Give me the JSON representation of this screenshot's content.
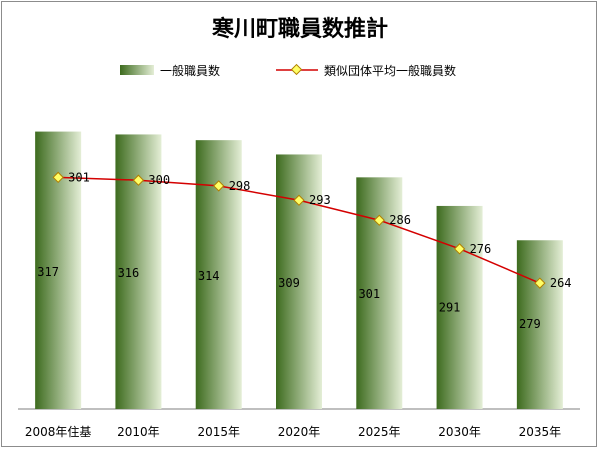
{
  "chart_data": {
    "type": "bar",
    "title": "寒川町職員数推計",
    "categories": [
      "2008年住基",
      "2010年",
      "2015年",
      "2020年",
      "2025年",
      "2030年",
      "2035年"
    ],
    "series": [
      {
        "name": "一般職員数",
        "type": "bar",
        "values": [
          317,
          316,
          314,
          309,
          301,
          291,
          279
        ]
      },
      {
        "name": "類似団体平均一般職員数",
        "type": "line",
        "values": [
          301,
          300,
          298,
          293,
          286,
          276,
          264
        ]
      }
    ],
    "ylim": [
      220,
      320
    ],
    "legend": "top",
    "grid": false,
    "colors": {
      "bar_dark": "#3d6b1e",
      "bar_light": "#e4eed6",
      "line": "#d40000",
      "marker_fill": "#ffff66",
      "marker_stroke": "#b08000"
    }
  }
}
